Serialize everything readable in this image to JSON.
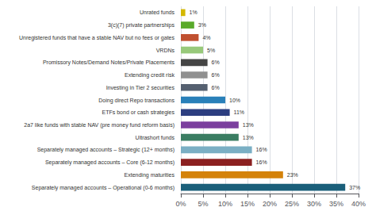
{
  "chart_data": {
    "type": "bar",
    "orientation": "horizontal",
    "categories": [
      "Separately managed accounts – Operational (0-6 months)",
      "Extending maturities",
      "Separately managed accounts – Core (6-12 months)",
      "Separately managed accounts – Strategic (12+ months)",
      "Ultrashort funds",
      "2a7 like funds with stable NAV (pre money fund reform basis)",
      "ETFs bond or cash strategies",
      "Doing direct Repo transactions",
      "Investing in Tier 2 securities",
      "Extending credit risk",
      "Promissory Notes/Demand Notes/Private Placements",
      "VRDNs",
      "Unregistered funds that have a stable NAV but no fees or gates",
      "3(c)(7) private partnerships",
      "Unrated funds"
    ],
    "values": [
      37,
      23,
      16,
      16,
      13,
      13,
      11,
      10,
      6,
      6,
      6,
      5,
      4,
      3,
      1
    ],
    "value_labels": [
      "37%",
      "23%",
      "16%",
      "16%",
      "13%",
      "13%",
      "11%",
      "10%",
      "6%",
      "6%",
      "6%",
      "5%",
      "4%",
      "3%",
      "1%"
    ],
    "data_labels": true,
    "colors": [
      "#1a5f7a",
      "#d4820a",
      "#8b2020",
      "#7aafc4",
      "#3a7d62",
      "#7b3f9e",
      "#2c3e80",
      "#2980b9",
      "#556070",
      "#909090",
      "#454545",
      "#98c97a",
      "#c05030",
      "#5aaa2a",
      "#d4b800"
    ],
    "xlim": [
      0,
      40
    ],
    "xticks": [
      {
        "value": 0,
        "label": "0%"
      },
      {
        "value": 5,
        "label": "5%"
      },
      {
        "value": 10,
        "label": "10%"
      },
      {
        "value": 15,
        "label": "15%"
      },
      {
        "value": 20,
        "label": "20%"
      },
      {
        "value": 25,
        "label": "25%"
      },
      {
        "value": 30,
        "label": "30%"
      },
      {
        "value": 35,
        "label": "35%"
      },
      {
        "value": 40,
        "label": "40%"
      }
    ],
    "grid": true
  }
}
